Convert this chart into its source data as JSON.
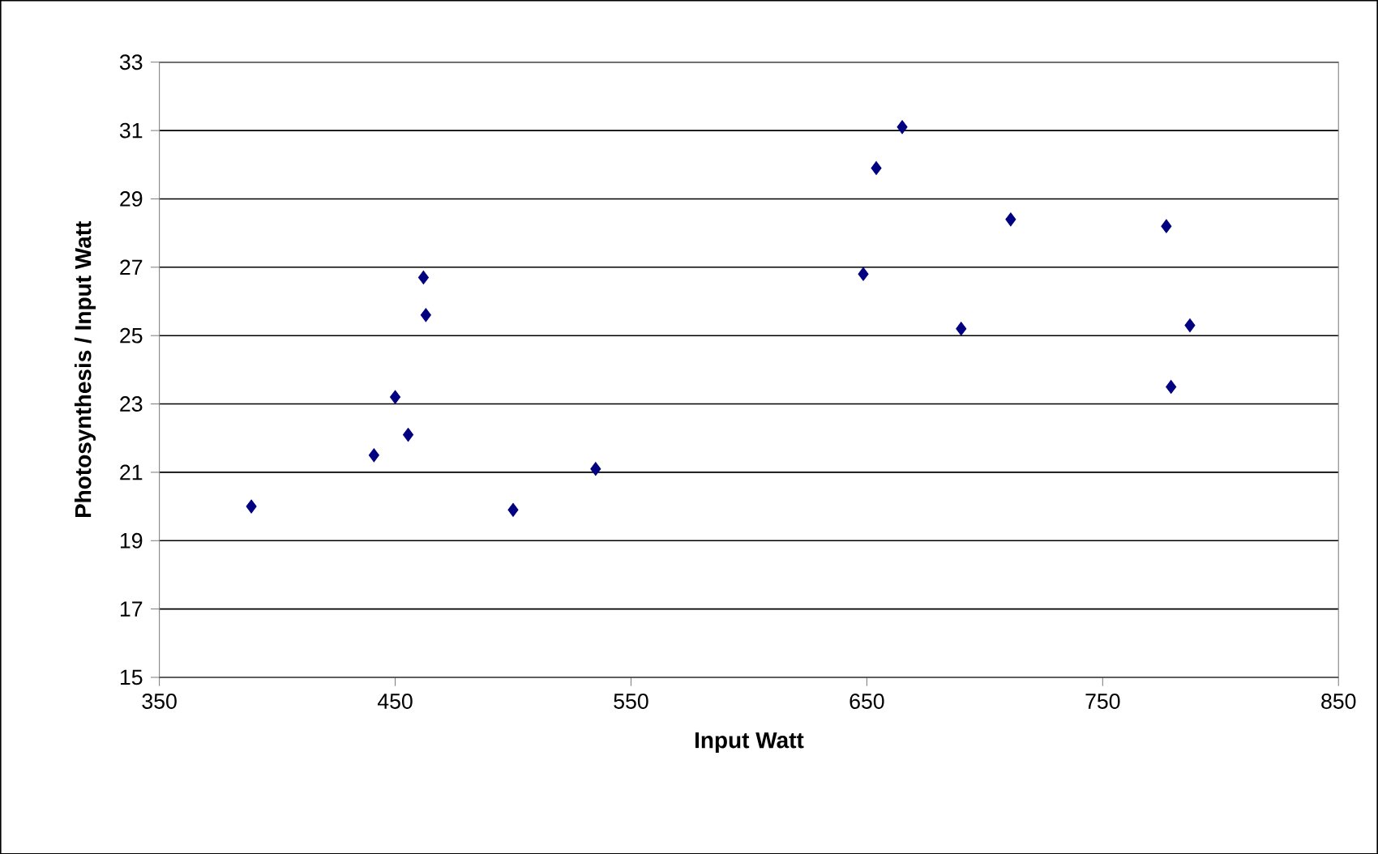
{
  "chart_data": {
    "type": "scatter",
    "xlabel": "Input Watt",
    "ylabel": "Photosynthesis / Input Watt",
    "x": [
      389,
      441,
      450,
      455.5,
      462,
      463,
      500,
      535,
      648.5,
      654,
      665,
      690,
      711,
      777,
      779,
      787
    ],
    "values": [
      20.0,
      21.5,
      23.2,
      22.1,
      26.7,
      25.6,
      19.9,
      21.1,
      26.8,
      29.9,
      31.1,
      25.2,
      28.4,
      28.2,
      23.5,
      25.3
    ],
    "color": "#000080",
    "marker": "diamond",
    "grid": "y",
    "xlim": [
      350,
      850
    ],
    "xticks": [
      350,
      450,
      550,
      650,
      750,
      850
    ],
    "ylim": [
      15,
      33
    ],
    "yticks": [
      15,
      17,
      19,
      21,
      23,
      25,
      27,
      29,
      31,
      33
    ]
  }
}
